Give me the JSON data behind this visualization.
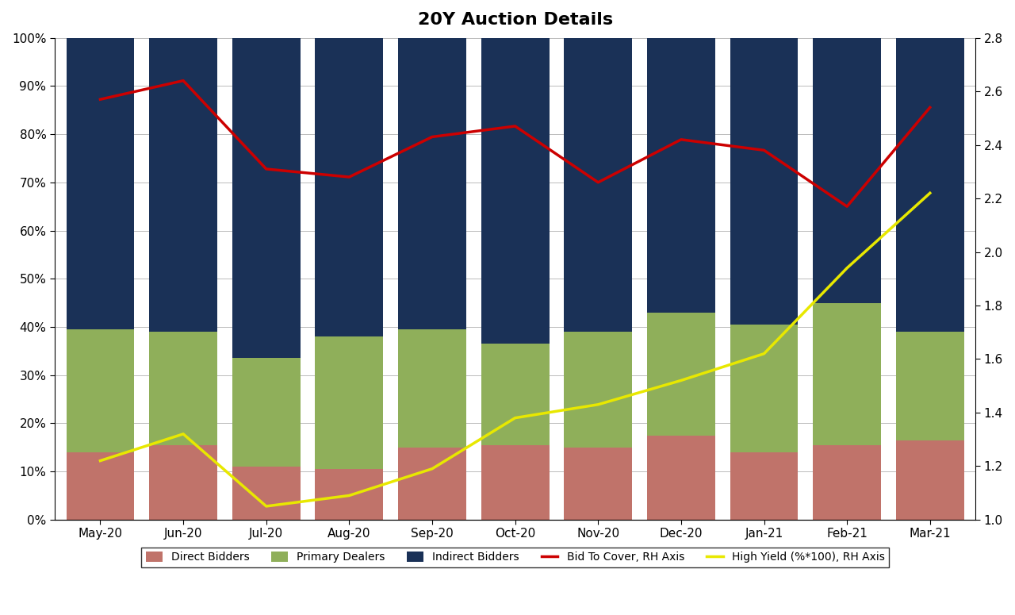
{
  "categories": [
    "May-20",
    "Jun-20",
    "Jul-20",
    "Aug-20",
    "Sep-20",
    "Oct-20",
    "Nov-20",
    "Dec-20",
    "Jan-21",
    "Feb-21",
    "Mar-21"
  ],
  "direct_bidders": [
    0.14,
    0.155,
    0.11,
    0.105,
    0.15,
    0.155,
    0.15,
    0.175,
    0.14,
    0.155,
    0.165
  ],
  "primary_dealers": [
    0.255,
    0.235,
    0.225,
    0.275,
    0.245,
    0.21,
    0.24,
    0.255,
    0.265,
    0.295,
    0.225
  ],
  "indirect_bidders": [
    0.605,
    0.61,
    0.665,
    0.62,
    0.605,
    0.635,
    0.61,
    0.57,
    0.595,
    0.55,
    0.61
  ],
  "bid_to_cover": [
    2.57,
    2.64,
    2.31,
    2.28,
    2.43,
    2.47,
    2.26,
    2.42,
    2.38,
    2.17,
    2.54
  ],
  "high_yield": [
    1.22,
    1.32,
    1.05,
    1.09,
    1.19,
    1.38,
    1.43,
    1.52,
    1.62,
    1.94,
    2.22
  ],
  "bar_color_direct": "#c0736a",
  "bar_color_primary": "#8faf5a",
  "bar_color_indirect": "#1a3157",
  "line_color_btc": "#cc0000",
  "line_color_hy": "#e8e800",
  "title": "20Y Auction Details",
  "title_fontsize": 16,
  "ylim_left": [
    0.0,
    1.0
  ],
  "ylim_right": [
    1.0,
    2.8
  ],
  "bg_color": "#ffffff",
  "grid_color": "#bbbbbb",
  "bar_width": 0.82,
  "figsize": [
    12.8,
    7.75
  ],
  "dpi": 100
}
